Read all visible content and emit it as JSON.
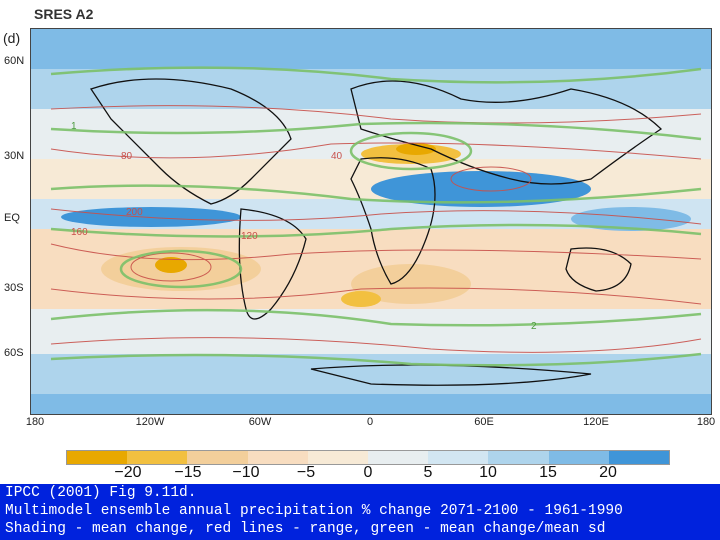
{
  "title": "SRES A2",
  "panel_label": "(d)",
  "map": {
    "latitude_labels": [
      "60N",
      "30N",
      "EQ",
      "30S",
      "60S"
    ],
    "longitude_labels": [
      "180",
      "120W",
      "60W",
      "0",
      "60E",
      "120E",
      "180"
    ],
    "contour_labels_red": [
      "40",
      "80",
      "120",
      "160",
      "200"
    ],
    "contour_labels_green": [
      "1",
      "2"
    ]
  },
  "colorbar": {
    "tick_labels": [
      "−20",
      "−15",
      "−10",
      "−5",
      "0",
      "5",
      "10",
      "15",
      "20"
    ],
    "colors": [
      "#e8a800",
      "#f2c040",
      "#f3cf9b",
      "#f8ddc0",
      "#f7ead6",
      "#e8eef0",
      "#d2e6f2",
      "#aed4ec",
      "#7fbbe6",
      "#3f95d8"
    ]
  },
  "caption": {
    "line1": "IPCC (2001) Fig 9.11d.",
    "line2": "Multimodel ensemble annual precipitation % change 2071-2100 - 1961-1990",
    "line3": "Shading - mean change, red lines - range, green - mean change/mean sd"
  },
  "colors": {
    "caption_background": "#0022dd",
    "contour_range": "#c8504a",
    "contour_ratio": "#7cc16a"
  }
}
